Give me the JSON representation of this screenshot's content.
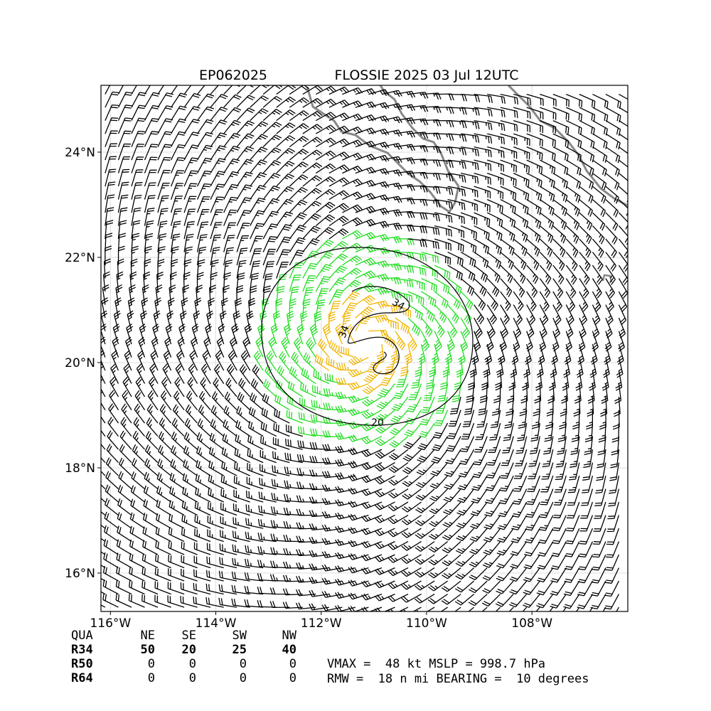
{
  "header": {
    "storm_id": "EP062025",
    "title": "FLOSSIE 2025 03 Jul 12UTC"
  },
  "map": {
    "xlim": [
      -116.18,
      -106.18
    ],
    "ylim": [
      15.27,
      25.27
    ],
    "xticks": [
      {
        "value": -116,
        "label": "116°W"
      },
      {
        "value": -114,
        "label": "114°W"
      },
      {
        "value": -112,
        "label": "112°W"
      },
      {
        "value": -110,
        "label": "110°W"
      },
      {
        "value": -108,
        "label": "108°W"
      }
    ],
    "yticks": [
      {
        "value": 16,
        "label": "16°N"
      },
      {
        "value": 18,
        "label": "18°N"
      },
      {
        "value": 20,
        "label": "20°N"
      },
      {
        "value": 22,
        "label": "22°N"
      },
      {
        "value": 24,
        "label": "24°N"
      }
    ],
    "grid": true,
    "contour_labels": [
      "34",
      "34",
      "20"
    ]
  },
  "table": {
    "header": [
      "QUA",
      "NE",
      "SE",
      "SW",
      "NW"
    ],
    "rows": [
      [
        "R34",
        "50",
        "20",
        "25",
        "40"
      ],
      [
        "R50",
        "0",
        "0",
        "0",
        "0"
      ],
      [
        "R64",
        "0",
        "0",
        "0",
        "0"
      ]
    ]
  },
  "summary": [
    "VMAX =  48 kt MSLP = 998.7 hPa",
    "RMW =  18 n mi BEARING =  10 degrees"
  ]
}
